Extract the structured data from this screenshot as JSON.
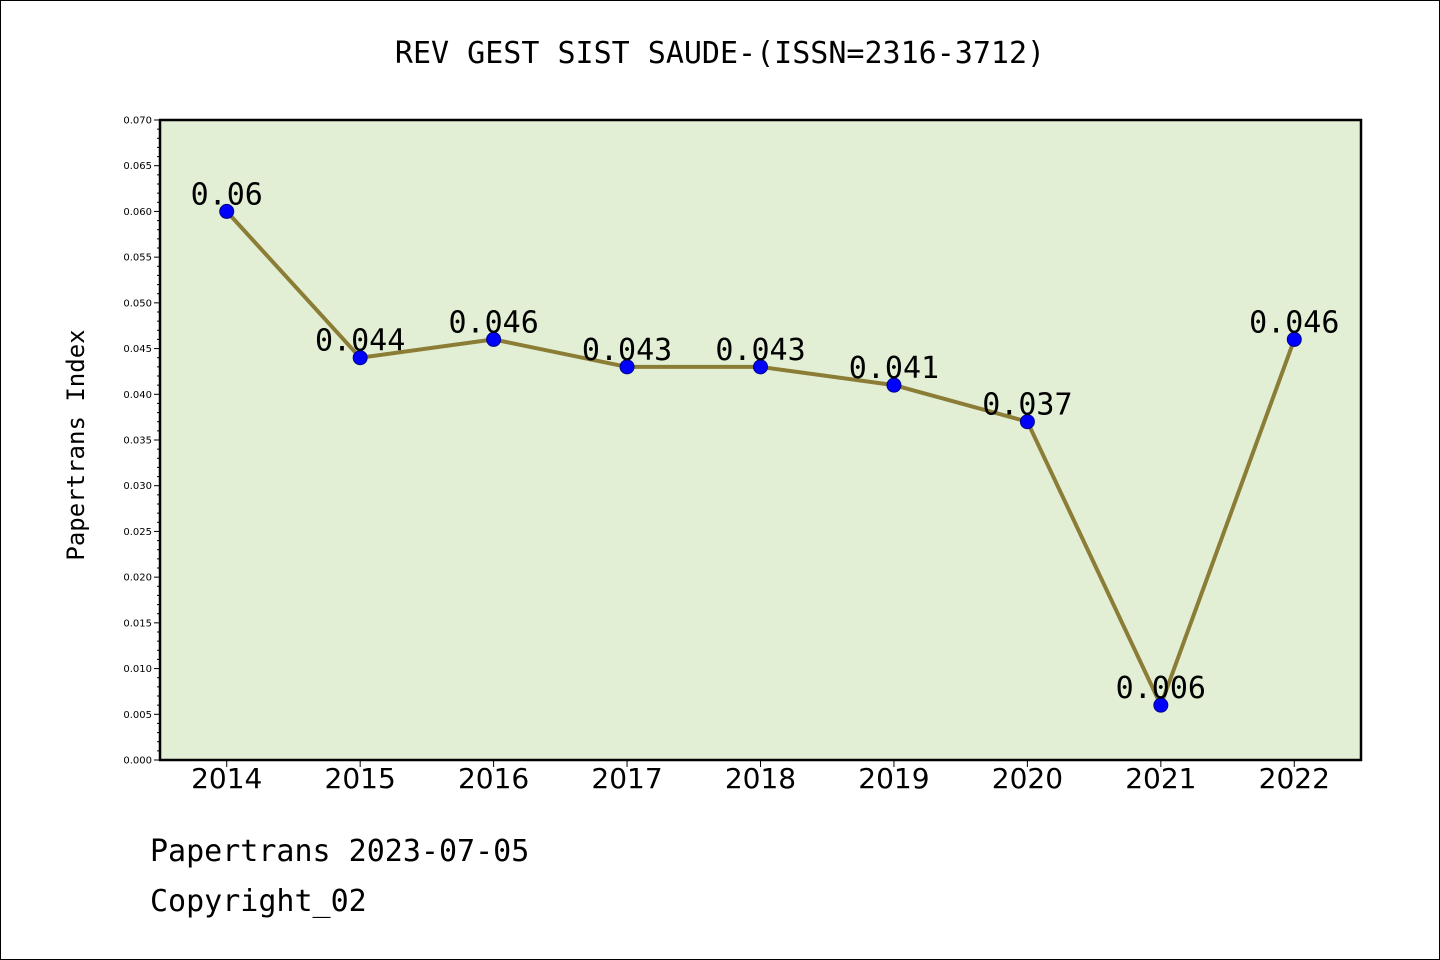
{
  "chart_data": {
    "type": "line",
    "title": "REV GEST SIST SAUDE-(ISSN=2316-3712)",
    "xlabel": "",
    "ylabel": "Papertrans Index",
    "x": [
      "2014",
      "2015",
      "2016",
      "2017",
      "2018",
      "2019",
      "2020",
      "2021",
      "2022"
    ],
    "series": [
      {
        "values": [
          0.06,
          0.044,
          0.046,
          0.043,
          0.043,
          0.041,
          0.037,
          0.006,
          0.046
        ],
        "labels": [
          "0.06",
          "0.044",
          "0.046",
          "0.043",
          "0.043",
          "0.041",
          "0.037",
          "0.006",
          "0.046"
        ]
      }
    ],
    "ylim": [
      0,
      0.07
    ],
    "yticks": [
      "0.000",
      "0.005",
      "0.010",
      "0.015",
      "0.020",
      "0.025",
      "0.030",
      "0.035",
      "0.040",
      "0.045",
      "0.050",
      "0.055",
      "0.060",
      "0.065",
      "0.070"
    ],
    "grid": false,
    "legend": "none",
    "colors": {
      "plot_background": "#e2efd5",
      "line": "#8b7d35",
      "marker": "#0000ff"
    }
  },
  "footer": {
    "line1": "Papertrans 2023-07-05",
    "line2": "Copyright_02"
  }
}
